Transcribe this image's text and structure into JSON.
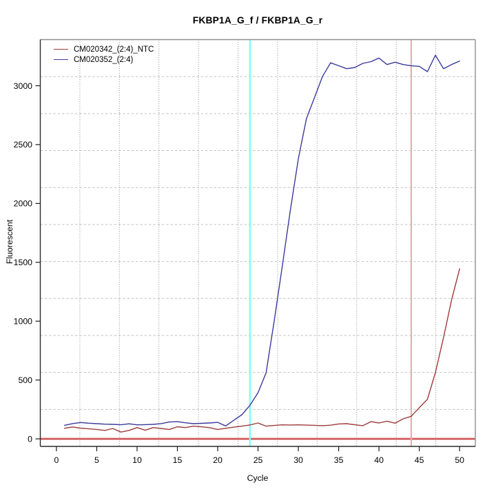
{
  "window": {
    "background": "#ffffff"
  },
  "chart_data": {
    "type": "line",
    "title": "FKBP1A_G_f / FKBP1A_G_r",
    "xlabel": "Cycle",
    "ylabel": "Fluorescent",
    "xlim": [
      -2,
      51.95
    ],
    "ylim": [
      -64,
      3392
    ],
    "x_ticks": [
      0,
      5,
      10,
      15,
      20,
      25,
      30,
      35,
      40,
      45,
      50
    ],
    "y_ticks": [
      0,
      500,
      1000,
      1500,
      2000,
      2500,
      3000
    ],
    "grid": {
      "divisions_x": 11,
      "divisions_y": 11,
      "vertical_style": "dotted",
      "horizontal_style": "dashed",
      "vertical_color": "#8c8c8c",
      "horizontal_color": "#c2c2c2"
    },
    "legend": {
      "position": "top-left",
      "entries": [
        {
          "label": "CM020342_(2:4)_NTC",
          "color": "#9e3a3a"
        },
        {
          "label": "CM020352_(2:4)",
          "color": "#3a3a9c"
        }
      ]
    },
    "annotations": {
      "threshold_hline": {
        "value": 0,
        "core_color": "#c23d3d",
        "halo_color": "#eda3a8"
      },
      "cyan_vline": {
        "cycle": 24,
        "color": "#7dfcfc"
      },
      "pink_vline": {
        "cycle": 44,
        "color": "#f2a9ae"
      }
    },
    "x": [
      1,
      2,
      3,
      4,
      5,
      6,
      7,
      8,
      9,
      10,
      11,
      12,
      13,
      14,
      15,
      16,
      17,
      18,
      19,
      20,
      21,
      22,
      23,
      24,
      25,
      26,
      27,
      28,
      29,
      30,
      31,
      32,
      33,
      34,
      35,
      36,
      37,
      38,
      39,
      40,
      41,
      42,
      43,
      44,
      45,
      46,
      47,
      48,
      49,
      50
    ],
    "series": [
      {
        "name": "CM020342_(2:4)_NTC",
        "color": "#9e3a3a",
        "values": [
          90,
          101,
          91,
          86,
          80,
          72,
          88,
          58,
          72,
          96,
          74,
          96,
          88,
          80,
          103,
          96,
          108,
          102,
          95,
          80,
          90,
          99,
          108,
          118,
          135,
          108,
          114,
          119,
          118,
          119,
          117,
          115,
          112,
          116,
          127,
          129,
          120,
          112,
          146,
          135,
          150,
          133,
          170,
          192,
          265,
          335,
          565,
          860,
          1180,
          1445
        ]
      },
      {
        "name": "CM020352_(2:4)",
        "color": "#3a3a9c",
        "values": [
          115,
          130,
          139,
          133,
          129,
          125,
          123,
          120,
          128,
          119,
          121,
          123,
          130,
          143,
          146,
          137,
          129,
          132,
          135,
          140,
          110,
          158,
          205,
          285,
          392,
          560,
          1000,
          1465,
          1940,
          2380,
          2720,
          2900,
          3080,
          3195,
          3170,
          3145,
          3155,
          3190,
          3205,
          3235,
          3180,
          3200,
          3180,
          3170,
          3165,
          3120,
          3260,
          3145,
          3180,
          3210
        ]
      }
    ]
  }
}
